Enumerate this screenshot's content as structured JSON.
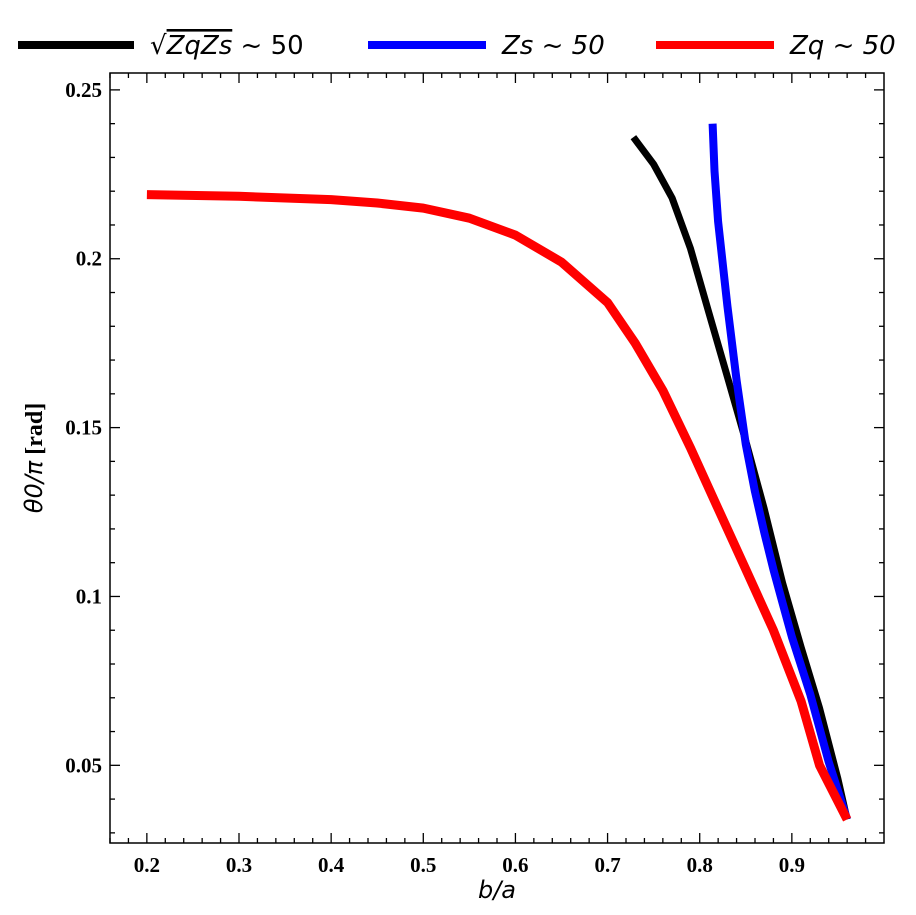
{
  "chart_data": {
    "type": "line",
    "title": "",
    "xlabel": "b/a",
    "ylabel": "θ0/π [rad]",
    "xlim": [
      0.16,
      1.0
    ],
    "ylim": [
      0.027,
      0.255
    ],
    "xticks": [
      0.2,
      0.3,
      0.4,
      0.5,
      0.6,
      0.7,
      0.8,
      0.9
    ],
    "xtick_labels": [
      "0.2",
      "0.3",
      "0.4",
      "0.5",
      "0.6",
      "0.7",
      "0.8",
      "0.9"
    ],
    "yticks": [
      0.05,
      0.1,
      0.15,
      0.2,
      0.25
    ],
    "ytick_labels": [
      "0.05",
      "0.1",
      "0.15",
      "0.2",
      "0.25"
    ],
    "grid": false,
    "legend_position": "top",
    "series": [
      {
        "name": "√(ZqZs) ~ 50",
        "color": "#000000",
        "x": [
          0.728,
          0.75,
          0.77,
          0.79,
          0.81,
          0.83,
          0.85,
          0.87,
          0.89,
          0.91,
          0.93,
          0.95,
          0.96
        ],
        "y": [
          0.236,
          0.228,
          0.218,
          0.203,
          0.184,
          0.165,
          0.146,
          0.126,
          0.104,
          0.085,
          0.067,
          0.046,
          0.034
        ]
      },
      {
        "name": "Zs ~ 50",
        "color": "#0000ff",
        "x": [
          0.814,
          0.816,
          0.82,
          0.83,
          0.84,
          0.85,
          0.86,
          0.87,
          0.88,
          0.89,
          0.9,
          0.92,
          0.94,
          0.96
        ],
        "y": [
          0.24,
          0.226,
          0.211,
          0.186,
          0.164,
          0.145,
          0.131,
          0.119,
          0.108,
          0.098,
          0.088,
          0.071,
          0.051,
          0.034
        ]
      },
      {
        "name": "Zq ~ 50",
        "color": "#ff0000",
        "x": [
          0.2,
          0.3,
          0.4,
          0.45,
          0.5,
          0.55,
          0.6,
          0.65,
          0.7,
          0.73,
          0.76,
          0.79,
          0.82,
          0.85,
          0.88,
          0.91,
          0.93,
          0.96
        ],
        "y": [
          0.219,
          0.2185,
          0.2175,
          0.2165,
          0.215,
          0.212,
          0.207,
          0.199,
          0.187,
          0.175,
          0.161,
          0.144,
          0.126,
          0.108,
          0.09,
          0.069,
          0.05,
          0.034
        ]
      }
    ]
  },
  "legend": {
    "items": [
      {
        "prefix": "√",
        "radicand": "ZqZs",
        "rest": " ~ 50",
        "color": "#000000"
      },
      {
        "label": "Zs ~ 50",
        "color": "#0000ff"
      },
      {
        "label": "Zq ~ 50",
        "color": "#ff0000"
      }
    ]
  },
  "axes": {
    "xlabel_text": "b/a",
    "ylabel_math": "θ0/π",
    "ylabel_unit": "[rad]"
  }
}
